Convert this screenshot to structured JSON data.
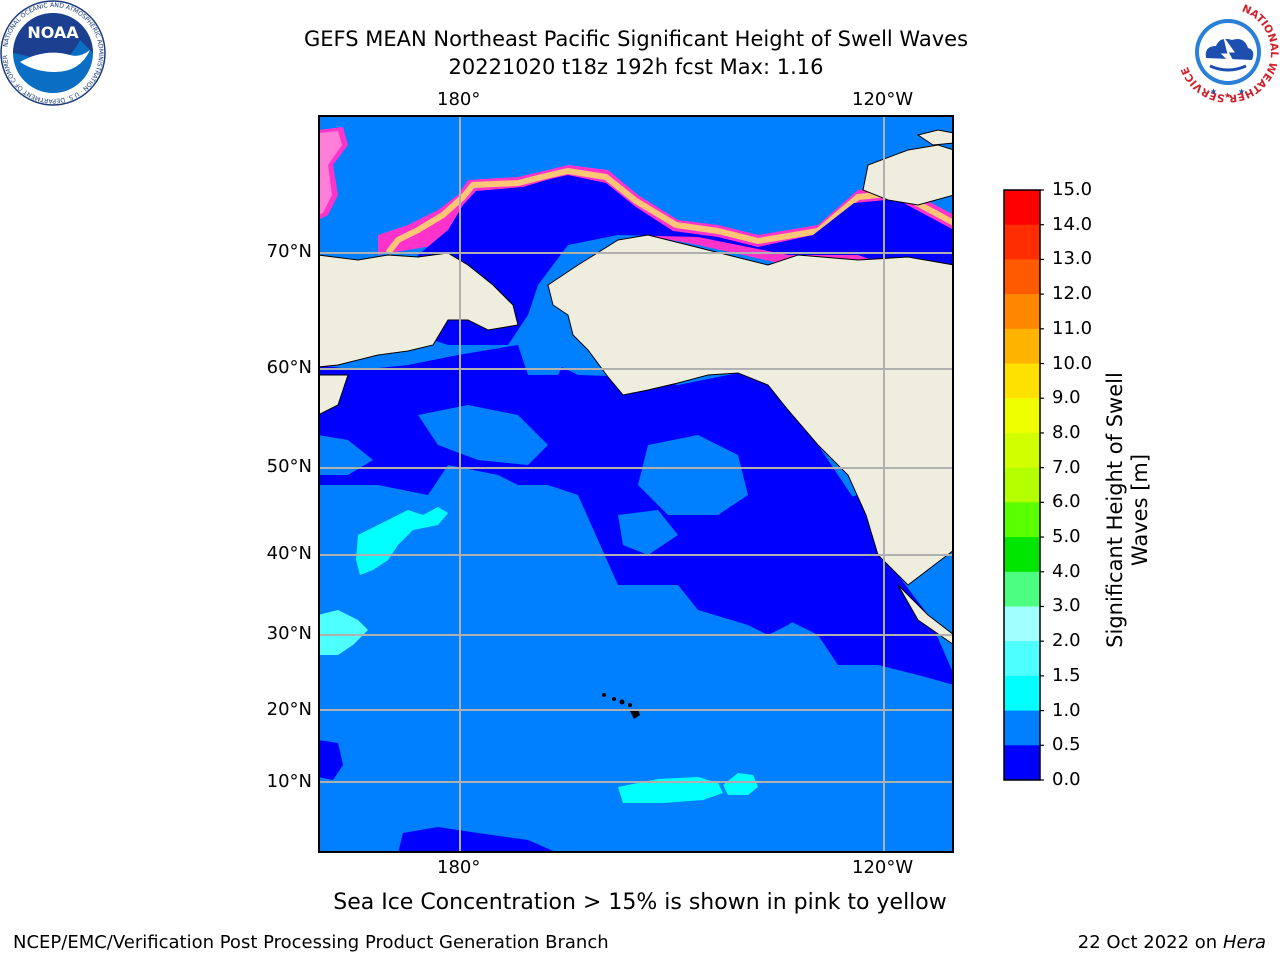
{
  "header": {
    "title_line1": "GEFS MEAN Northeast Pacific Significant Height of Swell Waves",
    "title_line2": "20221020 t18z 192h fcst   Max: 1.16"
  },
  "logos": {
    "noaa_text": "NOAA",
    "noaa_ring": "NATIONAL OCEANIC AND ATMOSPHERIC ADMINISTRATION · U.S. DEPARTMENT OF COMMERCE",
    "nws_ring": "NATIONAL WEATHER SERVICE"
  },
  "map": {
    "lon_labels_top": [
      "180°",
      "120°W"
    ],
    "lon_labels_bottom": [
      "180°",
      "120°W"
    ],
    "lat_labels": [
      "70°N",
      "60°N",
      "50°N",
      "40°N",
      "30°N",
      "20°N",
      "10°N"
    ],
    "colors": {
      "ocean_light": "#0080ff",
      "ocean_dark": "#0000ff",
      "cyan": "#00ffff",
      "land": "#efedde",
      "grid": "#b0b0b0",
      "ice_pink": "#ff33cc",
      "ice_yellow": "#ffe066"
    }
  },
  "colorbar": {
    "title_line1": "Significant Height of Swell",
    "title_line2": "Waves [m]",
    "tick_labels": [
      "15.0",
      "14.0",
      "13.0",
      "12.0",
      "11.0",
      "10.0",
      "9.0",
      "8.0",
      "7.0",
      "6.0",
      "5.0",
      "4.0",
      "3.0",
      "2.0",
      "1.5",
      "1.0",
      "0.5",
      "0.0"
    ],
    "colors_top_to_bottom": [
      "#ff0000",
      "#ff2d00",
      "#ff5a00",
      "#ff8700",
      "#ffb400",
      "#ffe100",
      "#f0ff00",
      "#d2ff00",
      "#b4ff00",
      "#5aff00",
      "#00e600",
      "#4dff80",
      "#a0ffff",
      "#4dffff",
      "#00ffff",
      "#0080ff",
      "#0000ff"
    ]
  },
  "footer": {
    "note": "Sea Ice Concentration > 15% is shown in pink to yellow",
    "credit_left": "NCEP/EMC/Verification Post Processing Product Generation Branch",
    "credit_right_prefix": "22 Oct 2022 on ",
    "credit_right_host": "Hera"
  }
}
